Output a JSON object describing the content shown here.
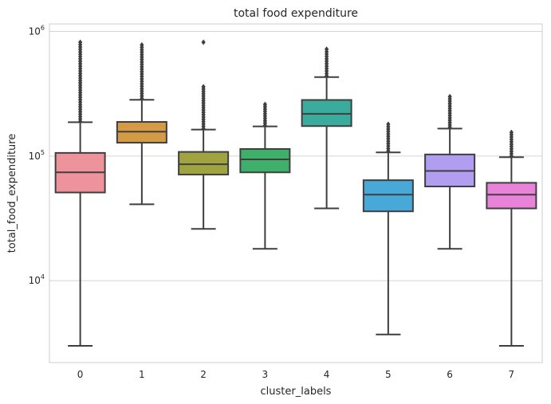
{
  "chart_data": {
    "type": "box",
    "title": "total food expenditure",
    "xlabel": "cluster_labels",
    "ylabel": "total_food_expenditure",
    "yscale": "log",
    "ylim": [
      2200,
      1150000
    ],
    "yticks": [
      {
        "value": 10000,
        "base": "10",
        "exp": "4"
      },
      {
        "value": 100000,
        "base": "10",
        "exp": "5"
      },
      {
        "value": 1000000,
        "base": "10",
        "exp": "6"
      }
    ],
    "grid": true,
    "categories": [
      "0",
      "1",
      "2",
      "3",
      "4",
      "5",
      "6",
      "7"
    ],
    "boxes": [
      {
        "label": "0",
        "color": "#ee929c",
        "whisker_low": 3000,
        "q1": 51000,
        "median": 74000,
        "q3": 106000,
        "whisker_high": 187000,
        "outliers_from": 190000,
        "outliers_to": 820000
      },
      {
        "label": "1",
        "color": "#d49a45",
        "whisker_low": 41000,
        "q1": 128000,
        "median": 157000,
        "q3": 188000,
        "whisker_high": 283000,
        "outliers_from": 290000,
        "outliers_to": 780000
      },
      {
        "label": "2",
        "color": "#a0a440",
        "whisker_low": 26000,
        "q1": 71000,
        "median": 86000,
        "q3": 108000,
        "whisker_high": 163000,
        "outliers_from": 166000,
        "outliers_to": 360000,
        "extra_outliers": [
          820000
        ]
      },
      {
        "label": "3",
        "color": "#3fb06a",
        "whisker_low": 18000,
        "q1": 74000,
        "median": 94000,
        "q3": 114000,
        "whisker_high": 173000,
        "outliers_from": 176000,
        "outliers_to": 260000
      },
      {
        "label": "4",
        "color": "#3aab9c",
        "whisker_low": 38000,
        "q1": 174000,
        "median": 218000,
        "q3": 282000,
        "whisker_high": 430000,
        "outliers_from": 440000,
        "outliers_to": 720000
      },
      {
        "label": "5",
        "color": "#48a9d8",
        "whisker_low": 3700,
        "q1": 36000,
        "median": 49000,
        "q3": 64000,
        "whisker_high": 107000,
        "outliers_from": 110000,
        "outliers_to": 180000
      },
      {
        "label": "6",
        "color": "#b19ef0",
        "whisker_low": 18000,
        "q1": 57000,
        "median": 76000,
        "q3": 103000,
        "whisker_high": 166000,
        "outliers_from": 170000,
        "outliers_to": 300000
      },
      {
        "label": "7",
        "color": "#e883d9",
        "whisker_low": 3000,
        "q1": 38000,
        "median": 49000,
        "q3": 61000,
        "whisker_high": 98000,
        "outliers_from": 100000,
        "outliers_to": 155000
      }
    ],
    "line_color": "#3f3f3f",
    "grid_color": "#d5d5d5",
    "frame_color": "#cccccc"
  }
}
